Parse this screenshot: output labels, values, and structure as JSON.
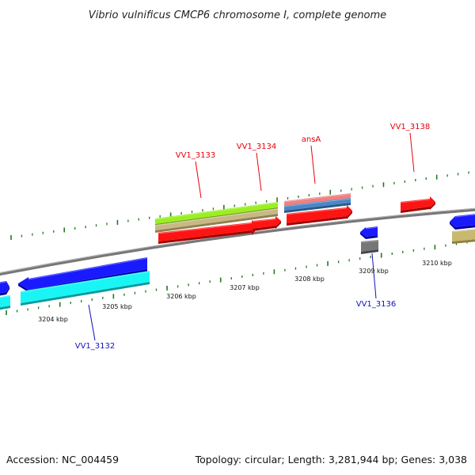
{
  "title": "Vibrio vulnificus CMCP6 chromosome I, complete genome",
  "footer": {
    "accession": "Accession: NC_004459",
    "summary": "Topology: circular; Length: 3,281,944 bp; Genes: 3,038"
  },
  "colors": {
    "label_red": "#e8000b",
    "label_blue": "#1010c0",
    "tick_green": "#1f7a1f",
    "backbone": "#777777"
  },
  "scale_labels": [
    "3204 kbp",
    "3205 kbp",
    "3206 kbp",
    "3207 kbp",
    "3208 kbp",
    "3209 kbp",
    "3210 kbp"
  ],
  "gene_labels": [
    {
      "text": "VV1_3133",
      "color": "red"
    },
    {
      "text": "VV1_3134",
      "color": "red"
    },
    {
      "text": "ansA",
      "color": "red"
    },
    {
      "text": "VV1_3138",
      "color": "red"
    },
    {
      "text": "VV1_3136",
      "color": "blue"
    },
    {
      "text": "VV1_3132",
      "color": "blue"
    }
  ],
  "features": [
    {
      "name": "feature-lime-band",
      "color": "#9aee22",
      "shade": "#5ea010"
    },
    {
      "name": "feature-tan-band",
      "color": "#c8b884",
      "shade": "#8f8050"
    },
    {
      "name": "gene-vv1-3133",
      "color": "#ff1414",
      "shade": "#a00000"
    },
    {
      "name": "gene-vv1-3134",
      "color": "#ff1414",
      "shade": "#a00000"
    },
    {
      "name": "feature-pink-band",
      "color": "#f08080",
      "shade": "#b05050"
    },
    {
      "name": "feature-steelblue-band",
      "color": "#4a86c8",
      "shade": "#28588a"
    },
    {
      "name": "gene-ansa",
      "color": "#ff1414",
      "shade": "#a00000"
    },
    {
      "name": "gene-vv1-3138",
      "color": "#ff1414",
      "shade": "#a00000"
    },
    {
      "name": "gene-blue-right-edge",
      "color": "#1a1aff",
      "shade": "#0000a0"
    },
    {
      "name": "feature-olive-right-edge",
      "color": "#c8b870",
      "shade": "#8f8040"
    },
    {
      "name": "gene-vv1-3136",
      "color": "#1a1aff",
      "shade": "#0000a0"
    },
    {
      "name": "feature-gray-block",
      "color": "#777777",
      "shade": "#444444"
    },
    {
      "name": "gene-vv1-3132",
      "color": "#1a1aff",
      "shade": "#0000a0"
    },
    {
      "name": "feature-cyan-band",
      "color": "#19f5f5",
      "shade": "#0a9a9a"
    },
    {
      "name": "gene-blue-left-edge",
      "color": "#1a1aff",
      "shade": "#0000a0"
    },
    {
      "name": "feature-cyan-left-edge",
      "color": "#19f5f5",
      "shade": "#0a9a9a"
    }
  ]
}
